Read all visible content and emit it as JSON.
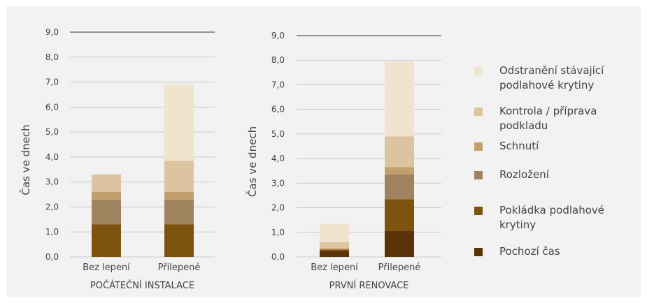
{
  "colors": {
    "panel_bg": "#f2f2f2",
    "gridline": "#c9c9c9",
    "top_gridline": "#5a5a5a",
    "text": "#444444"
  },
  "legend": [
    {
      "label": "Odstranění stávající podlahové krytiny",
      "color": "#f0e4cf"
    },
    {
      "label": "Kontrola / příprava podkladu",
      "color": "#dcc4a0"
    },
    {
      "label": "Schnutí",
      "color": "#c2a06c"
    },
    {
      "label": "Rozložení",
      "color": "#9e835e"
    },
    {
      "label": "Pokládka podlahové krytiny",
      "color": "#7e530f"
    },
    {
      "label": "Pochozí čas",
      "color": "#5b3208"
    }
  ],
  "chart_data": [
    {
      "type": "bar",
      "stacked": true,
      "title": "POČÁTEČNÍ INSTALACE",
      "ylabel": "Čas ve dnech",
      "ylim": [
        0,
        9
      ],
      "yticks": [
        "0,0",
        "1,0",
        "2,0",
        "3,0",
        "4,0",
        "5,0",
        "6,0",
        "7,0",
        "8,0",
        "9,0"
      ],
      "categories": [
        "Bez lepení",
        "Přilepené"
      ],
      "series": [
        {
          "name": "Pochozí čas",
          "values": [
            0,
            0
          ]
        },
        {
          "name": "Pokládka podlahové krytiny",
          "values": [
            1.3,
            1.3
          ]
        },
        {
          "name": "Rozložení",
          "values": [
            1.0,
            1.0
          ]
        },
        {
          "name": "Schnutí",
          "values": [
            0.3,
            0.3
          ]
        },
        {
          "name": "Kontrola / příprava podkladu",
          "values": [
            0.7,
            1.25
          ]
        },
        {
          "name": "Odstranění stávající podlahové krytiny",
          "values": [
            0,
            3.05
          ]
        }
      ]
    },
    {
      "type": "bar",
      "stacked": true,
      "title": "PRVNÍ RENOVACE",
      "ylabel": "Čas ve dnech",
      "ylim": [
        0,
        9
      ],
      "yticks": [
        "0,0",
        "1,0",
        "2,0",
        "3,0",
        "4,0",
        "5,0",
        "6,0",
        "7,0",
        "8,0",
        "9,0"
      ],
      "categories": [
        "Bez lepení",
        "Přilepené"
      ],
      "series": [
        {
          "name": "Pochozí čas",
          "values": [
            0.25,
            1.05
          ]
        },
        {
          "name": "Pokládka podlahové krytiny",
          "values": [
            0.05,
            1.3
          ]
        },
        {
          "name": "Rozložení",
          "values": [
            0,
            1.0
          ]
        },
        {
          "name": "Schnutí",
          "values": [
            0.05,
            0.3
          ]
        },
        {
          "name": "Kontrola / příprava podkladu",
          "values": [
            0.25,
            1.25
          ]
        },
        {
          "name": "Odstranění stávající podlahové krytiny",
          "values": [
            0.75,
            3.05
          ]
        }
      ]
    }
  ]
}
